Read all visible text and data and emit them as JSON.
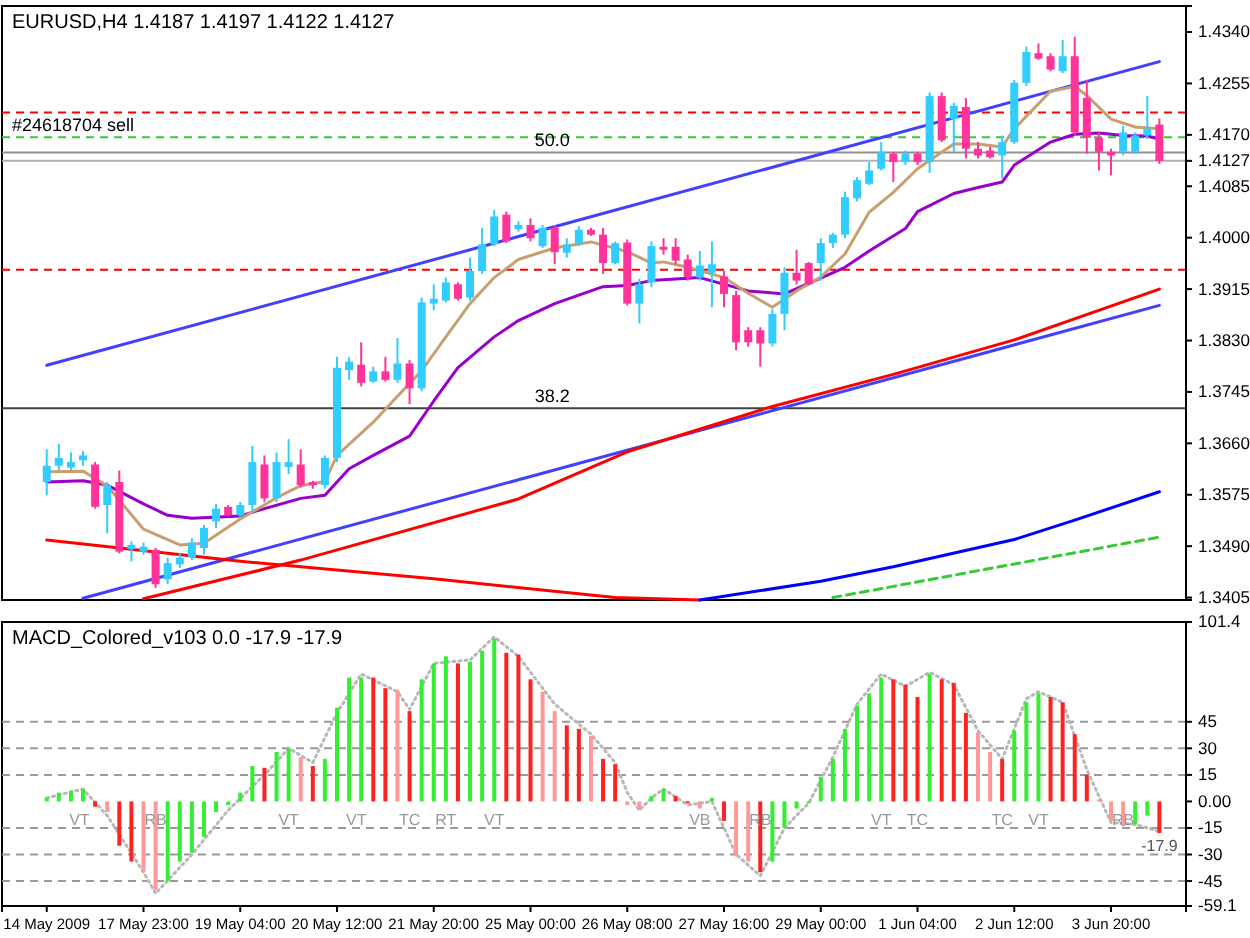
{
  "chart_data": [
    {
      "type": "candlestick",
      "title": "EURUSD,H4 1.4187 1.4197 1.4122 1.4127",
      "ohlc": [
        [
          1.3596,
          1.365,
          1.3574,
          1.3623
        ],
        [
          1.3623,
          1.3659,
          1.3616,
          1.3636
        ],
        [
          1.362,
          1.3645,
          1.3616,
          1.3629
        ],
        [
          1.3632,
          1.3647,
          1.3623,
          1.364
        ],
        [
          1.3625,
          1.3629,
          1.3552,
          1.3555
        ],
        [
          1.3558,
          1.3596,
          1.3511,
          1.3591
        ],
        [
          1.3596,
          1.3615,
          1.3478,
          1.3481
        ],
        [
          1.3485,
          1.3498,
          1.3465,
          1.3492
        ],
        [
          1.3481,
          1.3496,
          1.3476,
          1.3489
        ],
        [
          1.3484,
          1.3487,
          1.3421,
          1.3427
        ],
        [
          1.3435,
          1.3471,
          1.3427,
          1.3462
        ],
        [
          1.346,
          1.3478,
          1.3454,
          1.3471
        ],
        [
          1.3471,
          1.3503,
          1.3467,
          1.3496
        ],
        [
          1.3487,
          1.3525,
          1.3476,
          1.352
        ],
        [
          1.3531,
          1.356,
          1.352,
          1.3552
        ],
        [
          1.3555,
          1.3558,
          1.3539,
          1.3541
        ],
        [
          1.3541,
          1.3563,
          1.3536,
          1.3558
        ],
        [
          1.3558,
          1.3656,
          1.3547,
          1.3629
        ],
        [
          1.3625,
          1.364,
          1.3563,
          1.3569
        ],
        [
          1.3569,
          1.3645,
          1.3563,
          1.3629
        ],
        [
          1.3621,
          1.3667,
          1.3609,
          1.3629
        ],
        [
          1.3625,
          1.365,
          1.3587,
          1.3591
        ],
        [
          1.3596,
          1.3598,
          1.3585,
          1.3591
        ],
        [
          1.3591,
          1.364,
          1.3585,
          1.3636
        ],
        [
          1.3636,
          1.3803,
          1.3629,
          1.3785
        ],
        [
          1.3781,
          1.3803,
          1.3765,
          1.3795
        ],
        [
          1.379,
          1.3827,
          1.3754,
          1.376
        ],
        [
          1.3762,
          1.3787,
          1.376,
          1.3779
        ],
        [
          1.3779,
          1.3803,
          1.3762,
          1.3765
        ],
        [
          1.3765,
          1.3834,
          1.376,
          1.3792
        ],
        [
          1.3792,
          1.3798,
          1.3725,
          1.3751
        ],
        [
          1.3751,
          1.3901,
          1.3746,
          1.3893
        ],
        [
          1.3891,
          1.3923,
          1.388,
          1.3899
        ],
        [
          1.3896,
          1.3934,
          1.3893,
          1.3926
        ],
        [
          1.3923,
          1.3926,
          1.3896,
          1.3899
        ],
        [
          1.3901,
          1.3967,
          1.3896,
          1.3945
        ],
        [
          1.3945,
          1.4016,
          1.394,
          1.3989
        ],
        [
          1.3989,
          1.4046,
          1.3986,
          1.4035
        ],
        [
          1.4038,
          1.4043,
          1.3991,
          1.3994
        ],
        [
          1.4014,
          1.4027,
          1.401,
          1.4021
        ],
        [
          1.4021,
          1.4032,
          1.3994,
          1.3999
        ],
        [
          1.3986,
          1.4021,
          1.3983,
          1.4016
        ],
        [
          1.4016,
          1.4021,
          1.3956,
          1.3976
        ],
        [
          1.3975,
          1.3999,
          1.3967,
          1.3989
        ],
        [
          1.3991,
          1.4019,
          1.3986,
          1.4013
        ],
        [
          1.4013,
          1.4016,
          1.4003,
          1.4005
        ],
        [
          1.4005,
          1.4016,
          1.394,
          1.3958
        ],
        [
          1.3958,
          1.3994,
          1.3956,
          1.3991
        ],
        [
          1.3992,
          1.3997,
          1.3888,
          1.3891
        ],
        [
          1.3891,
          1.3932,
          1.3858,
          1.3923
        ],
        [
          1.3926,
          1.3994,
          1.3918,
          1.3986
        ],
        [
          1.3985,
          1.3999,
          1.3972,
          1.398
        ],
        [
          1.3985,
          1.3999,
          1.3956,
          1.3962
        ],
        [
          1.3964,
          1.3972,
          1.3929,
          1.3934
        ],
        [
          1.3934,
          1.3978,
          1.3929,
          1.3954
        ],
        [
          1.3942,
          1.3994,
          1.3885,
          1.3956
        ],
        [
          1.3936,
          1.3945,
          1.3885,
          1.3907
        ],
        [
          1.3905,
          1.3912,
          1.3814,
          1.3827
        ],
        [
          1.3847,
          1.3852,
          1.382,
          1.3827
        ],
        [
          1.3847,
          1.3852,
          1.3787,
          1.3825
        ],
        [
          1.3825,
          1.3882,
          1.382,
          1.3874
        ],
        [
          1.3874,
          1.3951,
          1.3847,
          1.3942
        ],
        [
          1.3942,
          1.398,
          1.3923,
          1.3929
        ],
        [
          1.3958,
          1.396,
          1.3921,
          1.3923
        ],
        [
          1.3958,
          1.3999,
          1.3929,
          1.3991
        ],
        [
          1.3991,
          1.4008,
          1.3983,
          1.4005
        ],
        [
          1.4005,
          1.4076,
          1.3999,
          1.4067
        ],
        [
          1.4065,
          1.41,
          1.406,
          1.4095
        ],
        [
          1.4089,
          1.4125,
          1.4087,
          1.4111
        ],
        [
          1.4114,
          1.4158,
          1.4111,
          1.4142
        ],
        [
          1.4139,
          1.4142,
          1.4092,
          1.4125
        ],
        [
          1.4125,
          1.4144,
          1.412,
          1.4139
        ],
        [
          1.4139,
          1.4142,
          1.412,
          1.4125
        ],
        [
          1.4125,
          1.424,
          1.4107,
          1.4234
        ],
        [
          1.4234,
          1.424,
          1.4158,
          1.4161
        ],
        [
          1.4196,
          1.4223,
          1.4142,
          1.4218
        ],
        [
          1.4216,
          1.4231,
          1.4131,
          1.4147
        ],
        [
          1.4147,
          1.4158,
          1.4131,
          1.4136
        ],
        [
          1.4144,
          1.415,
          1.4131,
          1.4133
        ],
        [
          1.4136,
          1.4169,
          1.4098,
          1.4158
        ],
        [
          1.4158,
          1.4261,
          1.4155,
          1.4256
        ],
        [
          1.4256,
          1.4316,
          1.4251,
          1.4307
        ],
        [
          1.4305,
          1.4321,
          1.4294,
          1.4296
        ],
        [
          1.43,
          1.4305,
          1.4275,
          1.4278
        ],
        [
          1.4275,
          1.4327,
          1.4272,
          1.43
        ],
        [
          1.43,
          1.4332,
          1.4169,
          1.4174
        ],
        [
          1.4231,
          1.4261,
          1.4139,
          1.4165
        ],
        [
          1.4165,
          1.4174,
          1.4111,
          1.4142
        ],
        [
          1.4142,
          1.4147,
          1.4103,
          1.4136
        ],
        [
          1.4142,
          1.4185,
          1.4136,
          1.4174
        ],
        [
          1.4142,
          1.4174,
          1.4139,
          1.4169
        ],
        [
          1.4169,
          1.4234,
          1.4163,
          1.418
        ],
        [
          1.4187,
          1.4197,
          1.4122,
          1.4127
        ]
      ],
      "colors": [
        "#33ccff",
        "#33ccff",
        "#33ccff",
        "#33ccff",
        "#ff3399",
        "#33ccff",
        "#ff3399",
        "#33ccff",
        "#33ccff",
        "#ff3399",
        "#33ccff",
        "#33ccff",
        "#33ccff",
        "#33ccff",
        "#33ccff",
        "#ff3399",
        "#33ccff",
        "#33ccff",
        "#ff3399",
        "#33ccff",
        "#33ccff",
        "#ff3399",
        "#ff3399",
        "#33ccff",
        "#33ccff",
        "#33ccff",
        "#ff3399",
        "#33ccff",
        "#ff3399",
        "#33ccff",
        "#ff3399",
        "#33ccff",
        "#33ccff",
        "#33ccff",
        "#ff3399",
        "#33ccff",
        "#33ccff",
        "#33ccff",
        "#ff3399",
        "#33ccff",
        "#ff3399",
        "#33ccff",
        "#ff3399",
        "#33ccff",
        "#33ccff",
        "#ff3399",
        "#ff3399",
        "#33ccff",
        "#ff3399",
        "#33ccff",
        "#33ccff",
        "#ff3399",
        "#ff3399",
        "#ff3399",
        "#33ccff",
        "#33ccff",
        "#ff3399",
        "#ff3399",
        "#ff3399",
        "#ff3399",
        "#33ccff",
        "#33ccff",
        "#ff3399",
        "#ff3399",
        "#33ccff",
        "#33ccff",
        "#33ccff",
        "#33ccff",
        "#33ccff",
        "#33ccff",
        "#ff3399",
        "#33ccff",
        "#ff3399",
        "#33ccff",
        "#ff3399",
        "#33ccff",
        "#ff3399",
        "#ff3399",
        "#ff3399",
        "#33ccff",
        "#33ccff",
        "#33ccff",
        "#ff3399",
        "#ff3399",
        "#33ccff",
        "#ff3399",
        "#ff3399",
        "#ff3399",
        "#ff3399",
        "#33ccff",
        "#33ccff",
        "#33ccff",
        "#ff3399"
      ],
      "series": [
        {
          "type": "line",
          "color": "#4040ff",
          "values": [
            1.3789,
            null,
            null,
            null,
            null,
            null,
            null,
            null,
            null,
            null,
            null,
            null,
            null,
            null,
            null,
            null,
            null,
            null,
            null,
            null,
            null,
            null,
            null,
            null,
            null,
            null,
            null,
            null,
            null,
            null,
            null,
            null,
            null,
            null,
            null,
            null,
            null,
            null,
            null,
            null,
            null,
            null,
            null,
            null,
            null,
            null,
            null,
            null,
            null,
            null,
            null,
            null,
            null,
            null,
            null,
            null,
            null,
            null,
            null,
            null,
            null,
            null,
            null,
            null,
            null,
            null,
            null,
            null,
            null,
            null,
            null,
            null,
            null,
            null,
            null,
            null,
            null,
            null,
            null,
            null,
            null,
            null,
            null,
            null,
            null,
            null,
            null,
            null,
            null,
            null,
            null,
            null,
            1.4291
          ]
        },
        {
          "type": "line",
          "color": "#4040ff",
          "values": [
            null,
            null,
            null,
            1.3404,
            null,
            null,
            null,
            null,
            null,
            null,
            null,
            null,
            null,
            null,
            null,
            null,
            null,
            null,
            null,
            null,
            null,
            null,
            null,
            null,
            null,
            null,
            null,
            null,
            null,
            null,
            null,
            null,
            null,
            null,
            null,
            null,
            null,
            null,
            null,
            null,
            null,
            null,
            null,
            null,
            null,
            null,
            null,
            null,
            null,
            null,
            null,
            null,
            null,
            null,
            null,
            null,
            null,
            null,
            null,
            null,
            null,
            null,
            null,
            null,
            null,
            null,
            null,
            null,
            null,
            null,
            null,
            null,
            null,
            null,
            null,
            null,
            null,
            null,
            null,
            null,
            null,
            null,
            null,
            null,
            null,
            null,
            null,
            null,
            null,
            null,
            null,
            null,
            1.3888
          ]
        },
        {
          "type": "line",
          "color": "#ff0000",
          "values": [
            1.35,
            null,
            null,
            null,
            null,
            null,
            null,
            null,
            null,
            null,
            null,
            null,
            null,
            null,
            null,
            null,
            1.3465,
            null,
            null,
            null,
            null,
            null,
            null,
            null,
            null,
            null,
            null,
            null,
            null,
            null,
            null,
            null,
            1.3436,
            null,
            null,
            null,
            null,
            null,
            null,
            null,
            null,
            null,
            null,
            null,
            null,
            null,
            null,
            1.3405,
            null,
            null,
            null,
            null,
            null,
            null,
            1.3401,
            null,
            null,
            null,
            null,
            null,
            null,
            null,
            null,
            null,
            null,
            null,
            null,
            null,
            null,
            null,
            null,
            null,
            null,
            null,
            null,
            null,
            null,
            null,
            null,
            null,
            null,
            null,
            null,
            null,
            null,
            null,
            null,
            null,
            null,
            null,
            null,
            null,
            null
          ]
        },
        {
          "type": "line",
          "color": "#0000ff",
          "values": [
            null,
            null,
            null,
            null,
            null,
            null,
            null,
            null,
            null,
            null,
            null,
            null,
            null,
            null,
            null,
            null,
            null,
            null,
            null,
            null,
            null,
            null,
            null,
            null,
            null,
            null,
            null,
            null,
            null,
            null,
            null,
            null,
            null,
            null,
            null,
            null,
            null,
            null,
            null,
            null,
            null,
            null,
            null,
            null,
            null,
            null,
            null,
            null,
            null,
            null,
            null,
            null,
            null,
            null,
            1.3401,
            null,
            null,
            null,
            null,
            null,
            null,
            null,
            null,
            null,
            1.3432,
            null,
            null,
            null,
            null,
            null,
            1.3456,
            null,
            null,
            null,
            null,
            null,
            null,
            null,
            null,
            null,
            1.3501,
            null,
            null,
            null,
            null,
            1.3533,
            null,
            null,
            null,
            null,
            null,
            null,
            1.358
          ]
        },
        {
          "type": "line",
          "color": "#ff0000",
          "values": [
            null,
            null,
            null,
            null,
            null,
            null,
            null,
            null,
            1.3403,
            null,
            null,
            null,
            null,
            null,
            null,
            null,
            null,
            null,
            null,
            null,
            null,
            1.3467,
            null,
            null,
            null,
            null,
            null,
            null,
            null,
            null,
            null,
            null,
            null,
            null,
            null,
            null,
            null,
            null,
            null,
            1.3568,
            null,
            null,
            null,
            null,
            null,
            null,
            null,
            null,
            1.3646,
            null,
            null,
            null,
            null,
            null,
            null,
            null,
            null,
            null,
            null,
            null,
            1.3721,
            null,
            null,
            null,
            null,
            null,
            null,
            null,
            null,
            null,
            1.3774,
            null,
            null,
            null,
            null,
            null,
            null,
            null,
            null,
            null,
            1.3831,
            null,
            null,
            null,
            null,
            null,
            null,
            null,
            null,
            null,
            null,
            null,
            1.3915
          ]
        },
        {
          "type": "line",
          "color": "#33cc33",
          "line_style": "dashed",
          "values": [
            null,
            null,
            null,
            null,
            null,
            null,
            null,
            null,
            null,
            null,
            null,
            null,
            null,
            null,
            null,
            null,
            null,
            null,
            null,
            null,
            null,
            null,
            null,
            null,
            null,
            null,
            null,
            null,
            null,
            null,
            null,
            null,
            null,
            null,
            null,
            null,
            null,
            null,
            null,
            null,
            null,
            null,
            null,
            null,
            null,
            null,
            null,
            null,
            null,
            null,
            null,
            null,
            null,
            null,
            null,
            null,
            null,
            null,
            null,
            null,
            null,
            null,
            null,
            null,
            null,
            1.3405,
            null,
            null,
            null,
            null,
            null,
            null,
            null,
            null,
            null,
            null,
            null,
            null,
            null,
            null,
            null,
            null,
            null,
            null,
            null,
            null,
            null,
            null,
            null,
            null,
            null,
            null,
            1.3505
          ]
        },
        {
          "type": "line",
          "color": "#9900cc",
          "values": [
            1.3596,
            null,
            null,
            1.3598,
            null,
            1.3591,
            null,
            null,
            1.356,
            null,
            1.3541,
            null,
            1.3536,
            null,
            null,
            null,
            1.354,
            null,
            1.3552,
            null,
            null,
            1.3569,
            null,
            1.3574,
            null,
            1.3618,
            null,
            1.364,
            null,
            null,
            1.3672,
            null,
            1.373,
            null,
            1.3785,
            null,
            null,
            1.3836,
            null,
            1.3863,
            null,
            null,
            1.3891,
            null,
            null,
            null,
            1.3919,
            null,
            1.3921,
            null,
            1.3929,
            null,
            null,
            null,
            1.3934,
            null,
            null,
            null,
            1.3912,
            null,
            null,
            1.3907,
            null,
            null,
            1.3933,
            null,
            1.3951,
            null,
            1.3978,
            null,
            null,
            1.4015,
            1.4043,
            null,
            null,
            1.4073,
            null,
            1.4083,
            null,
            1.4092,
            1.412,
            null,
            null,
            1.4158,
            null,
            1.4171,
            null,
            1.4173,
            null,
            1.4169,
            null,
            1.4168,
            1.4163
          ]
        },
        {
          "type": "line",
          "color": "#c8a070",
          "values": [
            1.3613,
            null,
            null,
            1.3614,
            null,
            1.359,
            null,
            null,
            1.3518,
            null,
            null,
            1.3492,
            null,
            1.3495,
            null,
            null,
            1.3535,
            null,
            null,
            1.357,
            null,
            1.359,
            null,
            1.3597,
            1.364,
            null,
            null,
            1.3695,
            null,
            1.3738,
            null,
            1.378,
            null,
            1.3836,
            null,
            1.3891,
            null,
            1.3934,
            null,
            1.3964,
            null,
            null,
            1.3983,
            null,
            null,
            1.3993,
            null,
            null,
            1.3977,
            null,
            1.3958,
            1.396,
            null,
            1.3951,
            null,
            null,
            1.3934,
            null,
            1.3908,
            null,
            1.3885,
            null,
            1.3912,
            null,
            1.3935,
            null,
            1.3973,
            null,
            1.4042,
            null,
            1.4075,
            null,
            1.4114,
            null,
            null,
            1.4155,
            null,
            1.4155,
            null,
            1.415,
            1.418,
            null,
            null,
            1.4242,
            null,
            1.425,
            1.4235,
            null,
            1.4196,
            null,
            1.4183,
            null,
            1.418
          ]
        }
      ],
      "ylim": [
        1.3401,
        1.4383
      ],
      "yticks": [
        1.3405,
        {
          "value": 1.349,
          "label": "1.3490"
        },
        1.3575,
        {
          "value": 1.366,
          "label": "1.3660"
        },
        1.3745,
        {
          "value": 1.383,
          "label": "1.3830"
        },
        1.3915,
        {
          "value": 1.4,
          "label": "1.4000"
        },
        1.4085,
        1.4127,
        {
          "value": 1.417,
          "label": "1.4170"
        },
        1.4255,
        {
          "value": 1.434,
          "label": "1.4340"
        }
      ],
      "tick_labels": "y",
      "ref_lines": [
        {
          "axis": "y",
          "value": 1.4207,
          "color": "#ff0000",
          "line_style": "dashed"
        },
        {
          "axis": "y",
          "value": 1.4166,
          "color": "#33cc33",
          "line_style": "dashed"
        },
        {
          "axis": "y",
          "value": 1.4141,
          "color": "#909090",
          "line_style": "solid"
        },
        {
          "axis": "y",
          "value": 1.4127,
          "color": "#b0b0b0",
          "line_style": "solid"
        },
        {
          "axis": "y",
          "value": 1.3947,
          "color": "#ff0000",
          "line_style": "dashed"
        },
        {
          "axis": "y",
          "value": 1.3718,
          "color": "#404040",
          "line_style": "solid"
        }
      ],
      "annotations": [
        {
          "text": "#24618704 sell",
          "y": 1.4166
        },
        {
          "text": "50.0",
          "y": 1.4141
        },
        {
          "text": "38.2",
          "y": 1.3718
        }
      ]
    },
    {
      "type": "bar",
      "title": "MACD_Colored_v103 0.0 -17.9 -17.9",
      "categories": [
        "14 May 2009",
        null,
        null,
        null,
        null,
        null,
        null,
        null,
        "17 May 23:00",
        null,
        null,
        null,
        null,
        null,
        null,
        null,
        "19 May 04:00",
        null,
        null,
        null,
        null,
        null,
        null,
        null,
        "20 May 12:00",
        null,
        null,
        null,
        null,
        null,
        null,
        null,
        "21 May 20:00",
        null,
        null,
        null,
        null,
        null,
        null,
        null,
        "25 May 00:00",
        null,
        null,
        null,
        null,
        null,
        null,
        null,
        "26 May 08:00",
        null,
        null,
        null,
        null,
        null,
        null,
        null,
        "27 May 16:00",
        null,
        null,
        null,
        null,
        null,
        null,
        null,
        "29 May 00:00",
        null,
        null,
        null,
        null,
        null,
        null,
        null,
        "1 Jun 04:00",
        null,
        null,
        null,
        null,
        null,
        null,
        null,
        "2 Jun 12:00",
        null,
        null,
        null,
        null,
        null,
        null,
        null,
        "3 Jun 20:00",
        null,
        null,
        null,
        null
      ],
      "series": [
        {
          "type": "bar",
          "values": [
            2,
            5,
            6,
            7,
            -3,
            -6,
            -25,
            -34,
            -40,
            -50,
            -45,
            -34,
            -29,
            -20,
            -6,
            -2,
            5,
            20,
            19,
            28,
            30,
            25,
            20,
            24,
            53,
            70,
            70,
            70,
            64,
            63,
            51,
            69,
            78,
            82,
            78,
            79,
            85,
            92,
            84,
            83,
            69,
            62,
            51,
            43,
            41,
            37,
            24,
            21,
            -2,
            -5,
            3,
            7,
            3,
            -1,
            -4,
            2,
            -11,
            -31,
            -34,
            -40,
            -34,
            -15,
            -4,
            -1,
            14,
            24,
            41,
            54,
            61,
            70,
            69,
            66,
            59,
            72,
            69,
            67,
            50,
            39,
            28,
            24,
            40,
            56,
            61,
            59,
            56,
            38,
            15,
            1,
            -11,
            -14,
            -13,
            -8,
            -17.9
          ],
          "colors": [
            "#33ee33",
            "#33ee33",
            "#33ee33",
            "#33ee33",
            "#ff2222",
            "#ff9999",
            "#ff2222",
            "#ff2222",
            "#ff9999",
            "#ff9999",
            "#33ee33",
            "#33ee33",
            "#33ee33",
            "#33ee33",
            "#33ee33",
            "#33ee33",
            "#33ee33",
            "#33ee33",
            "#ff2222",
            "#33ee33",
            "#33ee33",
            "#ff9999",
            "#ff2222",
            "#33ee33",
            "#33ee33",
            "#33ee33",
            "#33ee33",
            "#ff2222",
            "#ff2222",
            "#ff9999",
            "#ff2222",
            "#33ee33",
            "#33ee33",
            "#33ee33",
            "#ff2222",
            "#33ee33",
            "#33ee33",
            "#33ee33",
            "#ff2222",
            "#ff2222",
            "#ff2222",
            "#ff9999",
            "#ff9999",
            "#ff2222",
            "#ff2222",
            "#ff9999",
            "#ff2222",
            "#ff2222",
            "#ff9999",
            "#ff9999",
            "#33ee33",
            "#33ee33",
            "#ff2222",
            "#ff2222",
            "#ff9999",
            "#33ee33",
            "#ff2222",
            "#ff9999",
            "#ff9999",
            "#ff2222",
            "#33ee33",
            "#33ee33",
            "#33ee33",
            "#33ee33",
            "#33ee33",
            "#33ee33",
            "#33ee33",
            "#33ee33",
            "#33ee33",
            "#33ee33",
            "#ff2222",
            "#ff2222",
            "#ff2222",
            "#33ee33",
            "#ff2222",
            "#ff2222",
            "#ff2222",
            "#ff9999",
            "#ff9999",
            "#ff2222",
            "#33ee33",
            "#33ee33",
            "#33ee33",
            "#ff2222",
            "#ff2222",
            "#ff2222",
            "#ff2222",
            "#ff9999",
            "#ff9999",
            "#ff9999",
            "#33ee33",
            "#33ee33",
            "#ff2222"
          ],
          "value_labels": [
            null,
            null,
            null,
            null,
            null,
            null,
            null,
            null,
            null,
            null,
            null,
            null,
            null,
            null,
            null,
            null,
            null,
            null,
            null,
            null,
            null,
            null,
            null,
            null,
            null,
            null,
            null,
            null,
            null,
            null,
            null,
            null,
            null,
            null,
            null,
            null,
            null,
            null,
            null,
            null,
            null,
            null,
            null,
            null,
            null,
            null,
            null,
            null,
            null,
            null,
            null,
            null,
            null,
            null,
            null,
            null,
            null,
            null,
            null,
            null,
            null,
            null,
            null,
            null,
            null,
            null,
            null,
            null,
            null,
            null,
            null,
            null,
            null,
            null,
            null,
            null,
            null,
            null,
            null,
            null,
            null,
            null,
            null,
            null,
            null,
            null,
            null,
            null,
            null,
            null,
            null,
            null,
            "-17.9"
          ]
        },
        {
          "type": "line",
          "color": "#b8b8b8",
          "line_style": "dotted",
          "values": [
            2,
            null,
            null,
            7,
            null,
            -8,
            null,
            null,
            -40,
            -52,
            null,
            null,
            -30,
            null,
            null,
            -5,
            null,
            null,
            15,
            null,
            30,
            null,
            22,
            null,
            50,
            null,
            72,
            null,
            null,
            62,
            52,
            null,
            78,
            null,
            null,
            80,
            null,
            93,
            null,
            82,
            null,
            null,
            55,
            null,
            null,
            38,
            null,
            22,
            5,
            -5,
            2,
            7,
            null,
            -2,
            null,
            0,
            null,
            -30,
            null,
            -42,
            null,
            -15,
            null,
            -1,
            null,
            25,
            null,
            55,
            null,
            72,
            null,
            65,
            null,
            73,
            null,
            66,
            null,
            40,
            null,
            24,
            null,
            58,
            62,
            null,
            56,
            null,
            18,
            null,
            -12,
            null,
            -13,
            null,
            -17
          ]
        }
      ],
      "ylim": [
        -59.1,
        101.4
      ],
      "yticks": [
        101.4,
        45,
        30,
        15,
        {
          "value": 0,
          "label": "0.00"
        },
        -15,
        -30,
        -45,
        -59.1
      ],
      "ref_lines": [
        {
          "axis": "y",
          "value": 45,
          "color": "#999999",
          "line_style": "dashed"
        },
        {
          "axis": "y",
          "value": 30,
          "color": "#999999",
          "line_style": "dashed"
        },
        {
          "axis": "y",
          "value": 15,
          "color": "#999999",
          "line_style": "dashed"
        },
        {
          "axis": "y",
          "value": -15,
          "color": "#999999",
          "line_style": "dashed"
        },
        {
          "axis": "y",
          "value": -30,
          "color": "#999999",
          "line_style": "dashed"
        },
        {
          "axis": "y",
          "value": -45,
          "color": "#999999",
          "line_style": "dashed"
        }
      ],
      "annotations": [
        "VT",
        "RB",
        "VT",
        "VT",
        "TC",
        "RT",
        "VT",
        "VB",
        "RB",
        "VT",
        "TC",
        "TC",
        "VT",
        "RB"
      ]
    }
  ]
}
